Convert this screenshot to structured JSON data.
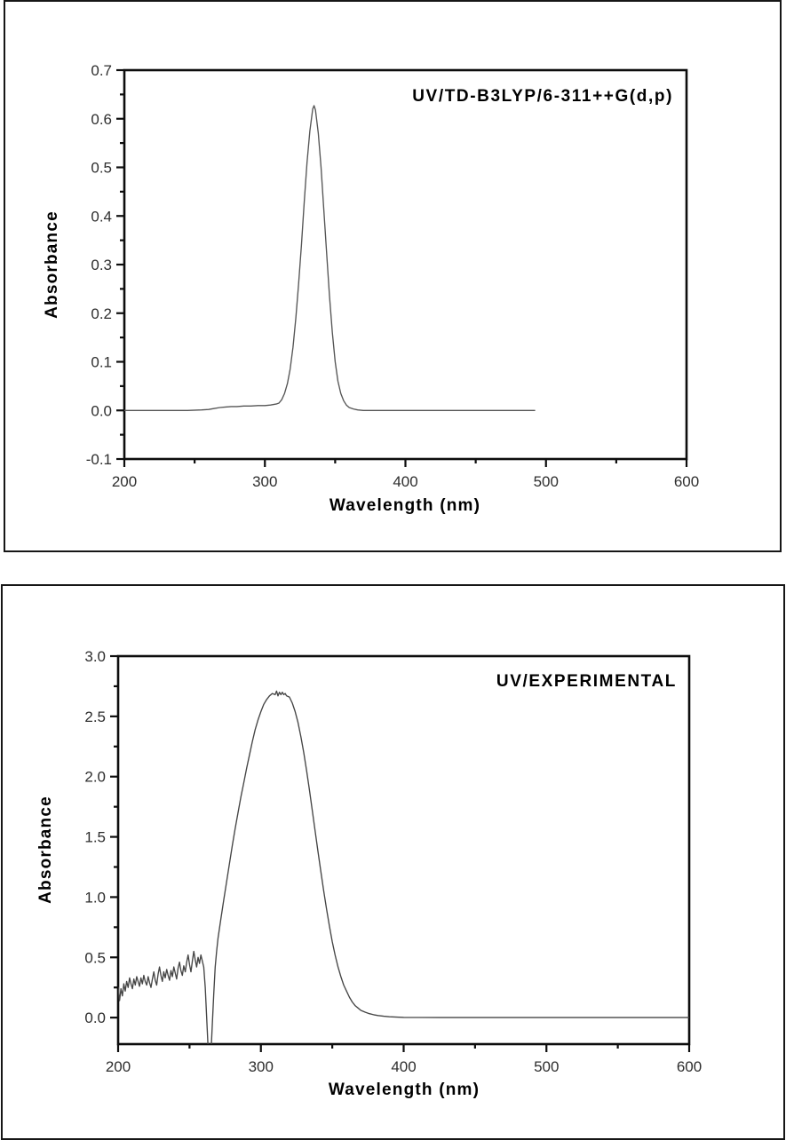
{
  "page": {
    "background": "#ffffff",
    "panel_border_color": "#161616"
  },
  "chart_data": [
    {
      "id": "td_dft",
      "type": "line",
      "title": "UV/TD-B3LYP/6-311++G(d,p)",
      "xlabel": "Wavelength (nm)",
      "ylabel": "Absorbance",
      "xlim": [
        200,
        600
      ],
      "ylim": [
        -0.1,
        0.7
      ],
      "grid": false,
      "legend": "none",
      "line_color": "#555555",
      "xticks_major": [
        200,
        300,
        400,
        500,
        600
      ],
      "xticks_minor": [
        250,
        350,
        450,
        550
      ],
      "xtick_labels": [
        "200",
        "300",
        "400",
        "500",
        "600"
      ],
      "yticks_major": [
        -0.1,
        0.0,
        0.1,
        0.2,
        0.3,
        0.4,
        0.5,
        0.6,
        0.7
      ],
      "yticks_minor": [
        -0.05,
        0.05,
        0.15,
        0.25,
        0.35,
        0.45,
        0.55,
        0.65
      ],
      "ytick_labels": [
        "-0.1",
        "0.0",
        "0.1",
        "0.2",
        "0.3",
        "0.4",
        "0.5",
        "0.6",
        "0.7"
      ],
      "peak_wavelength_nm": 334,
      "peak_absorbance": 0.63,
      "series": [
        {
          "points": [
            [
              200,
              0.0
            ],
            [
              215,
              0.0
            ],
            [
              230,
              0.0
            ],
            [
              245,
              0.0
            ],
            [
              255,
              0.001
            ],
            [
              260,
              0.002
            ],
            [
              264,
              0.004
            ],
            [
              268,
              0.006
            ],
            [
              272,
              0.007
            ],
            [
              276,
              0.008
            ],
            [
              280,
              0.008
            ],
            [
              285,
              0.009
            ],
            [
              290,
              0.009
            ],
            [
              295,
              0.01
            ],
            [
              300,
              0.01
            ],
            [
              304,
              0.011
            ],
            [
              308,
              0.013
            ],
            [
              310,
              0.015
            ],
            [
              312,
              0.022
            ],
            [
              314,
              0.035
            ],
            [
              316,
              0.055
            ],
            [
              318,
              0.085
            ],
            [
              320,
              0.13
            ],
            [
              322,
              0.19
            ],
            [
              324,
              0.26
            ],
            [
              326,
              0.34
            ],
            [
              328,
              0.43
            ],
            [
              330,
              0.51
            ],
            [
              332,
              0.575
            ],
            [
              334,
              0.62
            ],
            [
              335,
              0.627
            ],
            [
              336,
              0.618
            ],
            [
              338,
              0.57
            ],
            [
              340,
              0.5
            ],
            [
              342,
              0.41
            ],
            [
              344,
              0.32
            ],
            [
              346,
              0.235
            ],
            [
              348,
              0.16
            ],
            [
              350,
              0.1
            ],
            [
              352,
              0.06
            ],
            [
              354,
              0.035
            ],
            [
              356,
              0.02
            ],
            [
              358,
              0.011
            ],
            [
              360,
              0.006
            ],
            [
              363,
              0.003
            ],
            [
              366,
              0.001
            ],
            [
              370,
              0.0
            ],
            [
              380,
              0.0
            ],
            [
              400,
              0.0
            ],
            [
              430,
              0.0
            ],
            [
              460,
              0.0
            ],
            [
              492,
              0.0
            ]
          ]
        }
      ]
    },
    {
      "id": "experimental",
      "type": "line",
      "title": "UV/EXPERIMENTAL",
      "xlabel": "Wavelength (nm)",
      "ylabel": "Absorbance",
      "xlim": [
        200,
        600
      ],
      "ylim": [
        -0.22,
        3.0
      ],
      "grid": false,
      "legend": "none",
      "line_color": "#454545",
      "xticks_major": [
        200,
        300,
        400,
        500,
        600
      ],
      "xticks_minor": [
        250,
        350,
        450,
        550
      ],
      "xtick_labels": [
        "200",
        "300",
        "400",
        "500",
        "600"
      ],
      "yticks_major": [
        0.0,
        0.5,
        1.0,
        1.5,
        2.0,
        2.5,
        3.0
      ],
      "yticks_minor": [
        0.25,
        0.75,
        1.25,
        1.75,
        2.25,
        2.75
      ],
      "ytick_labels": [
        "0.0",
        "0.5",
        "1.0",
        "1.5",
        "2.0",
        "2.5",
        "3.0"
      ],
      "peak_wavelength_nm": 312,
      "peak_absorbance": 2.7,
      "series": [
        {
          "points": [
            [
              200,
              0.25
            ],
            [
              201,
              0.14
            ],
            [
              202,
              0.24
            ],
            [
              203,
              0.18
            ],
            [
              204,
              0.28
            ],
            [
              205,
              0.22
            ],
            [
              206,
              0.3
            ],
            [
              207,
              0.25
            ],
            [
              208,
              0.33
            ],
            [
              209,
              0.28
            ],
            [
              210,
              0.24
            ],
            [
              211,
              0.32
            ],
            [
              212,
              0.27
            ],
            [
              213,
              0.34
            ],
            [
              214,
              0.3
            ],
            [
              215,
              0.26
            ],
            [
              216,
              0.33
            ],
            [
              217,
              0.28
            ],
            [
              218,
              0.35
            ],
            [
              219,
              0.3
            ],
            [
              220,
              0.27
            ],
            [
              221,
              0.34
            ],
            [
              222,
              0.29
            ],
            [
              223,
              0.25
            ],
            [
              224,
              0.32
            ],
            [
              225,
              0.38
            ],
            [
              226,
              0.31
            ],
            [
              227,
              0.27
            ],
            [
              228,
              0.36
            ],
            [
              229,
              0.42
            ],
            [
              230,
              0.35
            ],
            [
              231,
              0.3
            ],
            [
              232,
              0.38
            ],
            [
              233,
              0.33
            ],
            [
              234,
              0.4
            ],
            [
              235,
              0.35
            ],
            [
              236,
              0.31
            ],
            [
              237,
              0.39
            ],
            [
              238,
              0.34
            ],
            [
              239,
              0.42
            ],
            [
              240,
              0.37
            ],
            [
              241,
              0.32
            ],
            [
              242,
              0.41
            ],
            [
              243,
              0.46
            ],
            [
              244,
              0.39
            ],
            [
              245,
              0.35
            ],
            [
              246,
              0.43
            ],
            [
              247,
              0.38
            ],
            [
              248,
              0.46
            ],
            [
              249,
              0.52
            ],
            [
              250,
              0.44
            ],
            [
              251,
              0.38
            ],
            [
              252,
              0.47
            ],
            [
              253,
              0.55
            ],
            [
              254,
              0.48
            ],
            [
              255,
              0.42
            ],
            [
              256,
              0.5
            ],
            [
              257,
              0.45
            ],
            [
              258,
              0.52
            ],
            [
              259,
              0.47
            ],
            [
              260,
              0.42
            ],
            [
              261,
              0.25
            ],
            [
              262,
              0.0
            ],
            [
              263,
              -0.25
            ],
            [
              264,
              -0.32
            ],
            [
              265,
              -0.3
            ],
            [
              266,
              -0.05
            ],
            [
              267,
              0.2
            ],
            [
              268,
              0.42
            ],
            [
              269,
              0.55
            ],
            [
              270,
              0.66
            ],
            [
              272,
              0.82
            ],
            [
              274,
              0.98
            ],
            [
              276,
              1.13
            ],
            [
              278,
              1.28
            ],
            [
              280,
              1.43
            ],
            [
              282,
              1.57
            ],
            [
              284,
              1.7
            ],
            [
              286,
              1.83
            ],
            [
              288,
              1.95
            ],
            [
              290,
              2.07
            ],
            [
              292,
              2.18
            ],
            [
              294,
              2.29
            ],
            [
              296,
              2.39
            ],
            [
              298,
              2.47
            ],
            [
              300,
              2.54
            ],
            [
              302,
              2.6
            ],
            [
              304,
              2.64
            ],
            [
              306,
              2.67
            ],
            [
              308,
              2.69
            ],
            [
              310,
              2.68
            ],
            [
              311,
              2.71
            ],
            [
              312,
              2.67
            ],
            [
              313,
              2.7
            ],
            [
              314,
              2.68
            ],
            [
              315,
              2.7
            ],
            [
              316,
              2.68
            ],
            [
              317,
              2.69
            ],
            [
              318,
              2.67
            ],
            [
              320,
              2.66
            ],
            [
              322,
              2.61
            ],
            [
              324,
              2.54
            ],
            [
              326,
              2.45
            ],
            [
              328,
              2.33
            ],
            [
              330,
              2.2
            ],
            [
              332,
              2.05
            ],
            [
              334,
              1.89
            ],
            [
              336,
              1.72
            ],
            [
              338,
              1.55
            ],
            [
              340,
              1.38
            ],
            [
              342,
              1.21
            ],
            [
              344,
              1.05
            ],
            [
              346,
              0.9
            ],
            [
              348,
              0.76
            ],
            [
              350,
              0.63
            ],
            [
              352,
              0.52
            ],
            [
              354,
              0.42
            ],
            [
              356,
              0.34
            ],
            [
              358,
              0.27
            ],
            [
              360,
              0.22
            ],
            [
              362,
              0.17
            ],
            [
              364,
              0.13
            ],
            [
              366,
              0.1
            ],
            [
              368,
              0.08
            ],
            [
              370,
              0.06
            ],
            [
              373,
              0.045
            ],
            [
              376,
              0.033
            ],
            [
              379,
              0.024
            ],
            [
              382,
              0.017
            ],
            [
              386,
              0.011
            ],
            [
              390,
              0.007
            ],
            [
              395,
              0.004
            ],
            [
              400,
              0.002
            ],
            [
              410,
              0.001
            ],
            [
              425,
              0.0
            ],
            [
              450,
              0.0
            ],
            [
              475,
              0.0
            ],
            [
              500,
              0.0
            ],
            [
              525,
              0.0
            ],
            [
              550,
              0.0
            ],
            [
              575,
              0.0
            ],
            [
              600,
              0.0
            ]
          ]
        }
      ]
    }
  ]
}
